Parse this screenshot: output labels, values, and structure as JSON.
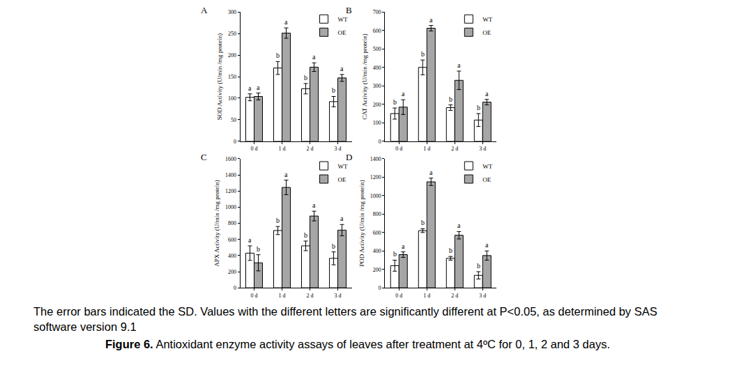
{
  "chart_data": [
    {
      "type": "bar",
      "panel": "A",
      "ylabel": "SOD Activity (U/min /mg protein)",
      "categories": [
        "0 d",
        "1 d",
        "2 d",
        "3 d"
      ],
      "series": [
        {
          "name": "WT",
          "color": "#ffffff",
          "values": [
            102,
            170,
            122,
            92
          ],
          "errors": [
            8,
            15,
            12,
            12
          ],
          "letters": [
            "a",
            "b",
            "b",
            "b"
          ]
        },
        {
          "name": "OE",
          "color": "#a6a6a6",
          "values": [
            104,
            251,
            172,
            147
          ],
          "errors": [
            8,
            12,
            10,
            8
          ],
          "letters": [
            "a",
            "a",
            "a",
            "a"
          ]
        }
      ],
      "ylim": [
        0,
        300
      ],
      "yticks": [
        0,
        50,
        100,
        150,
        200,
        250,
        300
      ],
      "grid": false,
      "legend": "upper right"
    },
    {
      "type": "bar",
      "panel": "B",
      "ylabel": "CAT Activity (U/min /mg protein)",
      "categories": [
        "0 d",
        "1 d",
        "2 d",
        "3 d"
      ],
      "series": [
        {
          "name": "WT",
          "color": "#ffffff",
          "values": [
            150,
            400,
            182,
            115
          ],
          "errors": [
            30,
            40,
            15,
            35
          ],
          "letters": [
            "b",
            "b",
            "b",
            "b"
          ]
        },
        {
          "name": "OE",
          "color": "#a6a6a6",
          "values": [
            185,
            612,
            330,
            212
          ],
          "errors": [
            40,
            15,
            50,
            15
          ],
          "letters": [
            "a",
            "a",
            "a",
            "a"
          ]
        }
      ],
      "ylim": [
        0,
        700
      ],
      "yticks": [
        0,
        100,
        200,
        300,
        400,
        500,
        600,
        700
      ],
      "grid": false,
      "legend": "upper right"
    },
    {
      "type": "bar",
      "panel": "C",
      "ylabel": "APX Activity (U/min /mg protein)",
      "categories": [
        "0 d",
        "1 d",
        "2 d",
        "3 d"
      ],
      "series": [
        {
          "name": "WT",
          "color": "#ffffff",
          "values": [
            430,
            710,
            520,
            365
          ],
          "errors": [
            90,
            50,
            60,
            80
          ],
          "letters": [
            "a",
            "b",
            "b",
            "b"
          ]
        },
        {
          "name": "OE",
          "color": "#a6a6a6",
          "values": [
            310,
            1245,
            890,
            715
          ],
          "errors": [
            100,
            90,
            60,
            70
          ],
          "letters": [
            "b",
            "a",
            "a",
            "a"
          ]
        }
      ],
      "ylim": [
        0,
        1600
      ],
      "yticks": [
        0,
        200,
        400,
        600,
        800,
        1000,
        1200,
        1400,
        1600
      ],
      "grid": false,
      "legend": "upper right"
    },
    {
      "type": "bar",
      "panel": "D",
      "ylabel": "POD Activity (U/min /mg protein)",
      "categories": [
        "0 d",
        "1 d",
        "2 d",
        "3 d"
      ],
      "series": [
        {
          "name": "WT",
          "color": "#ffffff",
          "values": [
            240,
            620,
            320,
            135
          ],
          "errors": [
            60,
            20,
            20,
            40
          ],
          "letters": [
            "b",
            "b",
            "b",
            "b"
          ]
        },
        {
          "name": "OE",
          "color": "#a6a6a6",
          "values": [
            360,
            1150,
            570,
            350
          ],
          "errors": [
            30,
            40,
            40,
            50
          ],
          "letters": [
            "a",
            "a",
            "a",
            "a"
          ]
        }
      ],
      "ylim": [
        0,
        1400
      ],
      "yticks": [
        0,
        200,
        400,
        600,
        800,
        1000,
        1200,
        1400
      ],
      "grid": false,
      "legend": "upper right"
    }
  ],
  "caption": {
    "note": "The error bars indicated the SD. Values with the different letters are significantly different at P<0.05, as determined by SAS software version 9.1",
    "figure_label": "Figure 6.",
    "figure_title": "Antioxidant enzyme activity assays of leaves after treatment at 4ºC for 0, 1, 2 and 3 days."
  }
}
